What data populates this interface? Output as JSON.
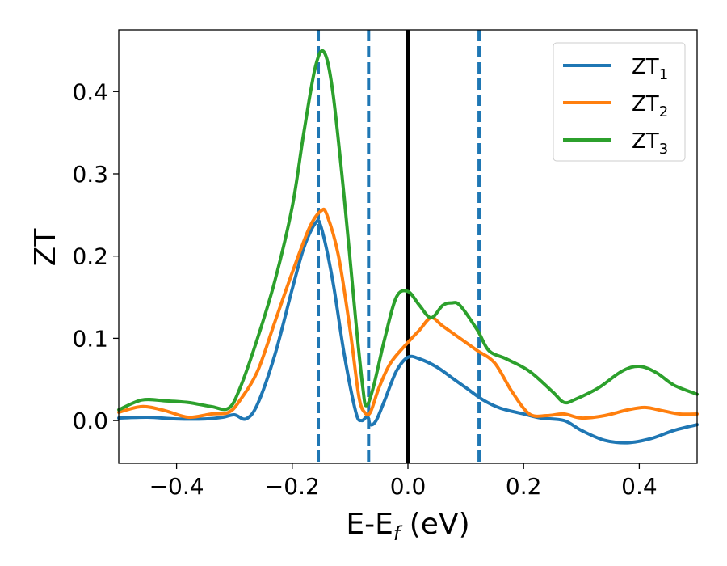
{
  "chart_data": {
    "type": "line",
    "xlabel_main": "E-E",
    "xlabel_sub": "f",
    "xlabel_unit": " (eV)",
    "ylabel": "ZT",
    "xlim": [
      -0.5,
      0.5
    ],
    "ylim": [
      -0.052,
      0.475
    ],
    "x_ticks": [
      -0.4,
      -0.2,
      0.0,
      0.2,
      0.4
    ],
    "x_tick_labels": [
      "−0.4",
      "−0.2",
      "0.0",
      "0.2",
      "0.4"
    ],
    "y_ticks": [
      0.0,
      0.1,
      0.2,
      0.3,
      0.4
    ],
    "y_tick_labels": [
      "0.0",
      "0.1",
      "0.2",
      "0.3",
      "0.4"
    ],
    "grid": false,
    "legend_position": "top-right",
    "vertical_lines": [
      {
        "x": -0.155,
        "style": "dashed",
        "color": "#1f77b4"
      },
      {
        "x": -0.068,
        "style": "dashed",
        "color": "#1f77b4"
      },
      {
        "x": 0.0,
        "style": "solid",
        "color": "#000000"
      },
      {
        "x": 0.123,
        "style": "dashed",
        "color": "#1f77b4"
      }
    ],
    "series": [
      {
        "name": "ZT",
        "name_sub": "1",
        "color": "#1f77b4",
        "points": [
          [
            -0.5,
            0.003
          ],
          [
            -0.45,
            0.004
          ],
          [
            -0.4,
            0.002
          ],
          [
            -0.35,
            0.002
          ],
          [
            -0.32,
            0.004
          ],
          [
            -0.3,
            0.007
          ],
          [
            -0.28,
            0.002
          ],
          [
            -0.26,
            0.02
          ],
          [
            -0.23,
            0.08
          ],
          [
            -0.2,
            0.16
          ],
          [
            -0.18,
            0.21
          ],
          [
            -0.16,
            0.24
          ],
          [
            -0.15,
            0.235
          ],
          [
            -0.13,
            0.17
          ],
          [
            -0.11,
            0.08
          ],
          [
            -0.09,
            0.01
          ],
          [
            -0.08,
            0.0
          ],
          [
            -0.07,
            0.005
          ],
          [
            -0.065,
            -0.005
          ],
          [
            -0.055,
            0.0
          ],
          [
            -0.04,
            0.025
          ],
          [
            -0.02,
            0.06
          ],
          [
            0.0,
            0.077
          ],
          [
            0.02,
            0.075
          ],
          [
            0.05,
            0.065
          ],
          [
            0.08,
            0.05
          ],
          [
            0.1,
            0.04
          ],
          [
            0.13,
            0.025
          ],
          [
            0.16,
            0.015
          ],
          [
            0.2,
            0.008
          ],
          [
            0.23,
            0.003
          ],
          [
            0.27,
            0.0
          ],
          [
            0.3,
            -0.012
          ],
          [
            0.34,
            -0.024
          ],
          [
            0.38,
            -0.027
          ],
          [
            0.42,
            -0.022
          ],
          [
            0.46,
            -0.012
          ],
          [
            0.5,
            -0.005
          ]
        ]
      },
      {
        "name": "ZT",
        "name_sub": "2",
        "color": "#ff7f0e",
        "points": [
          [
            -0.5,
            0.01
          ],
          [
            -0.46,
            0.017
          ],
          [
            -0.42,
            0.012
          ],
          [
            -0.38,
            0.004
          ],
          [
            -0.34,
            0.008
          ],
          [
            -0.31,
            0.01
          ],
          [
            -0.29,
            0.025
          ],
          [
            -0.26,
            0.06
          ],
          [
            -0.23,
            0.12
          ],
          [
            -0.2,
            0.18
          ],
          [
            -0.17,
            0.235
          ],
          [
            -0.15,
            0.255
          ],
          [
            -0.14,
            0.25
          ],
          [
            -0.12,
            0.2
          ],
          [
            -0.1,
            0.11
          ],
          [
            -0.085,
            0.03
          ],
          [
            -0.075,
            0.01
          ],
          [
            -0.065,
            0.01
          ],
          [
            -0.05,
            0.04
          ],
          [
            -0.03,
            0.07
          ],
          [
            0.0,
            0.095
          ],
          [
            0.02,
            0.11
          ],
          [
            0.04,
            0.125
          ],
          [
            0.06,
            0.115
          ],
          [
            0.09,
            0.1
          ],
          [
            0.12,
            0.085
          ],
          [
            0.15,
            0.07
          ],
          [
            0.18,
            0.035
          ],
          [
            0.21,
            0.008
          ],
          [
            0.24,
            0.006
          ],
          [
            0.27,
            0.008
          ],
          [
            0.3,
            0.003
          ],
          [
            0.34,
            0.006
          ],
          [
            0.38,
            0.013
          ],
          [
            0.41,
            0.016
          ],
          [
            0.44,
            0.012
          ],
          [
            0.47,
            0.008
          ],
          [
            0.5,
            0.008
          ]
        ]
      },
      {
        "name": "ZT",
        "name_sub": "3",
        "color": "#2ca02c",
        "points": [
          [
            -0.5,
            0.013
          ],
          [
            -0.46,
            0.025
          ],
          [
            -0.42,
            0.024
          ],
          [
            -0.38,
            0.022
          ],
          [
            -0.34,
            0.017
          ],
          [
            -0.31,
            0.015
          ],
          [
            -0.29,
            0.04
          ],
          [
            -0.26,
            0.1
          ],
          [
            -0.23,
            0.17
          ],
          [
            -0.2,
            0.26
          ],
          [
            -0.18,
            0.35
          ],
          [
            -0.16,
            0.43
          ],
          [
            -0.145,
            0.448
          ],
          [
            -0.13,
            0.4
          ],
          [
            -0.11,
            0.27
          ],
          [
            -0.09,
            0.12
          ],
          [
            -0.078,
            0.04
          ],
          [
            -0.072,
            0.018
          ],
          [
            -0.06,
            0.04
          ],
          [
            -0.04,
            0.1
          ],
          [
            -0.02,
            0.15
          ],
          [
            0.0,
            0.157
          ],
          [
            0.02,
            0.14
          ],
          [
            0.04,
            0.125
          ],
          [
            0.06,
            0.14
          ],
          [
            0.075,
            0.143
          ],
          [
            0.09,
            0.14
          ],
          [
            0.12,
            0.11
          ],
          [
            0.14,
            0.085
          ],
          [
            0.17,
            0.075
          ],
          [
            0.21,
            0.06
          ],
          [
            0.25,
            0.035
          ],
          [
            0.27,
            0.022
          ],
          [
            0.29,
            0.026
          ],
          [
            0.33,
            0.04
          ],
          [
            0.37,
            0.06
          ],
          [
            0.4,
            0.066
          ],
          [
            0.43,
            0.058
          ],
          [
            0.46,
            0.043
          ],
          [
            0.5,
            0.032
          ]
        ]
      }
    ]
  }
}
